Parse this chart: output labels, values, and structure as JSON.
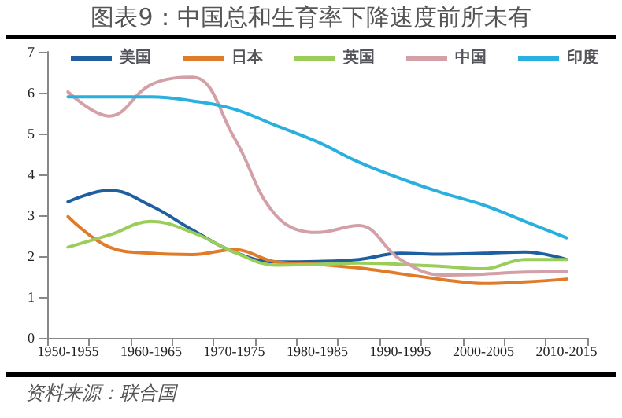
{
  "chart_data": {
    "type": "line",
    "title": "图表9：中国总和生育率下降速度前所未有",
    "annotations": [
      "资料来源：联合国"
    ],
    "categories": [
      "1950-1955",
      null,
      "1960-1965",
      null,
      "1970-1975",
      null,
      "1980-1985",
      null,
      "1990-1995",
      null,
      "2000-2005",
      null,
      "2010-2015"
    ],
    "series": [
      {
        "name": "美国",
        "color": "#1f5fa0",
        "values": [
          3.33,
          3.61,
          3.23,
          2.64,
          2.1,
          1.86,
          1.87,
          1.92,
          2.07,
          2.05,
          2.07,
          2.1,
          1.92
        ]
      },
      {
        "name": "日本",
        "color": "#e07b2a",
        "values": [
          2.97,
          2.22,
          2.07,
          2.04,
          2.16,
          1.86,
          1.8,
          1.71,
          1.57,
          1.43,
          1.33,
          1.37,
          1.44
        ]
      },
      {
        "name": "英国",
        "color": "#9acd5a",
        "values": [
          2.22,
          2.52,
          2.85,
          2.58,
          2.1,
          1.78,
          1.8,
          1.83,
          1.8,
          1.75,
          1.69,
          1.92,
          1.92
        ]
      },
      {
        "name": "中国",
        "color": "#d4a0a8",
        "values": [
          6.02,
          5.43,
          6.2,
          6.38,
          4.9,
          3.0,
          2.58,
          2.75,
          1.92,
          1.54,
          1.56,
          1.61,
          1.62
        ]
      },
      {
        "name": "印度",
        "color": "#2ab0de",
        "values": [
          5.9,
          5.9,
          5.9,
          5.8,
          5.6,
          5.2,
          4.8,
          4.3,
          3.9,
          3.55,
          3.25,
          2.85,
          2.45
        ]
      }
    ],
    "ylim": [
      0,
      7
    ],
    "yticks": [
      0,
      1,
      2,
      3,
      4,
      5,
      6,
      7
    ],
    "grid": false,
    "legend": "top",
    "marker": "none",
    "line_style": "solid"
  }
}
